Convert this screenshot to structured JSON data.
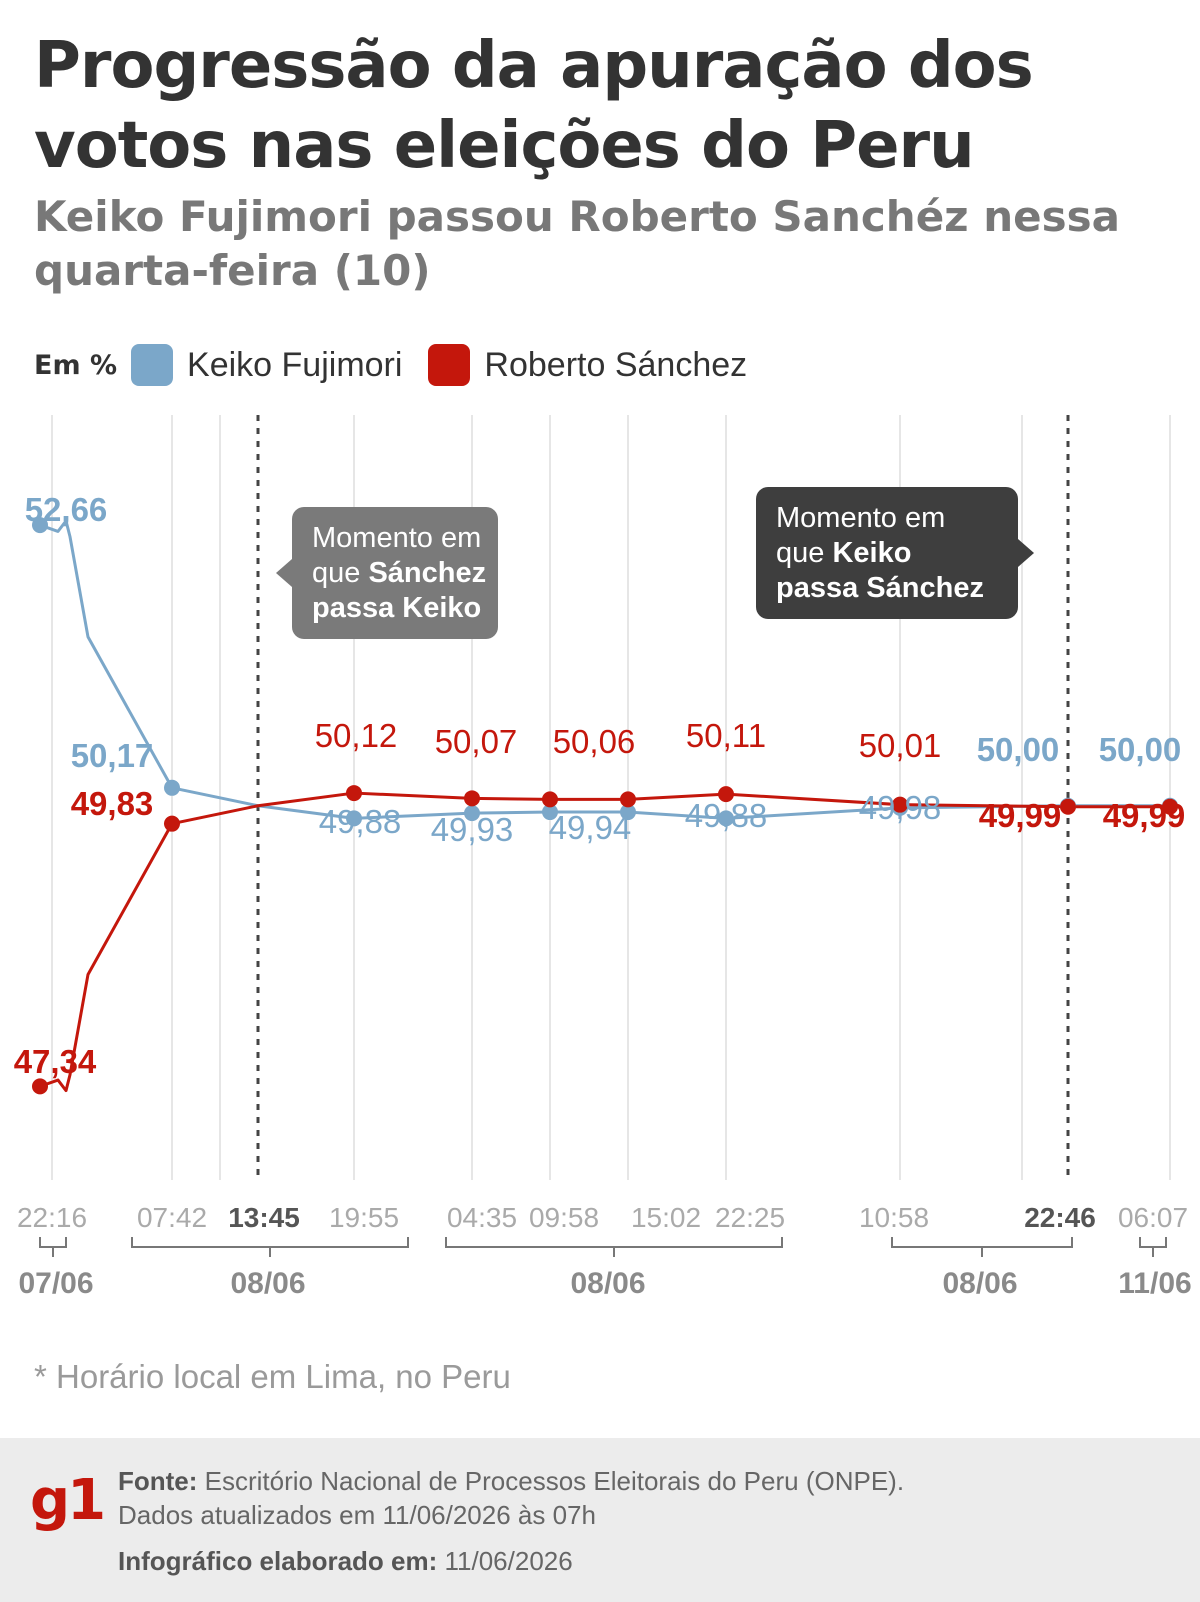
{
  "header": {
    "title": "Progressão da apuração dos votos nas eleições do Peru",
    "subtitle": "Keiko Fujimori passou Roberto Sanchéz nessa quarta-feira (10)"
  },
  "legend": {
    "unit": "Em %",
    "items": [
      {
        "label": "Keiko Fujimori",
        "color": "#7ba7c9"
      },
      {
        "label": "Roberto Sánchez",
        "color": "#c4170c"
      }
    ]
  },
  "chart_data": {
    "type": "line",
    "x": [
      "22:16",
      "07:42",
      "13:45",
      "19:55",
      "04:35",
      "09:58",
      "15:02",
      "22:25",
      "10:58",
      "22:46",
      "06:07"
    ],
    "x_bold": [
      "13:45",
      "22:46"
    ],
    "dates": [
      {
        "label": "07/06",
        "from": "22:16",
        "to": "22:16"
      },
      {
        "label": "08/06",
        "from": "07:42",
        "to": "19:55"
      },
      {
        "label": "08/06",
        "from": "04:35",
        "to": "22:25"
      },
      {
        "label": "08/06",
        "from": "10:58",
        "to": "22:46"
      },
      {
        "label": "11/06",
        "from": "06:07",
        "to": "06:07"
      }
    ],
    "ylim": [
      46.5,
      53.4
    ],
    "series": [
      {
        "name": "Keiko Fujimori",
        "color": "#7ba7c9",
        "values": [
          52.66,
          50.17,
          50.0,
          49.88,
          49.93,
          49.94,
          49.94,
          49.88,
          49.98,
          50.0,
          50.0
        ],
        "labels": [
          "52,66",
          "50,17",
          "",
          "49,88",
          "49,93",
          "49,94",
          "",
          "49,88",
          "49,98",
          "50,00",
          "50,00"
        ]
      },
      {
        "name": "Roberto Sánchez",
        "color": "#c4170c",
        "values": [
          47.34,
          49.83,
          50.0,
          50.12,
          50.07,
          50.06,
          50.06,
          50.11,
          50.01,
          49.99,
          49.99
        ],
        "labels": [
          "47,34",
          "49,83",
          "",
          "50,12",
          "50,07",
          "50,06",
          "",
          "50,11",
          "50,01",
          "49,99",
          "49,99"
        ]
      }
    ],
    "annotations": [
      {
        "at": "13:45",
        "text_parts": [
          "Momento em",
          "que ",
          "Sánchez",
          "passa Keiko"
        ]
      },
      {
        "at": "22:46",
        "text_parts": [
          "Momento em",
          "que ",
          "Keiko",
          "passa Sánchez"
        ]
      }
    ]
  },
  "note": "* Horário local em Lima, no Peru",
  "footer": {
    "logo": "g1",
    "source_key": "Fonte:",
    "source_text": "Escritório Nacional de Processos Eleitorais do Peru (ONPE).",
    "updated": "Dados atualizados em 11/06/2026 às 07h",
    "made_key": "Infográfico elaborado em:",
    "made_value": "11/06/2026"
  }
}
